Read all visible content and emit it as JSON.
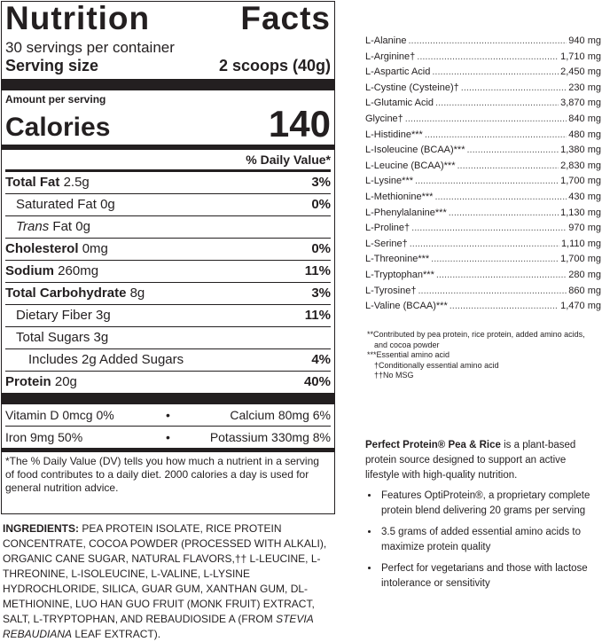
{
  "label": {
    "title_left": "Nutrition",
    "title_right": "Facts",
    "servings_per_container": "30 servings per container",
    "serving_size_label": "Serving size",
    "serving_size_value": "2 scoops (40g)",
    "amount_per_serving": "Amount per serving",
    "calories_label": "Calories",
    "calories_value": "140",
    "dv_header": "% Daily Value*",
    "rows": [
      {
        "name": "Total Fat",
        "amount": "2.5g",
        "dv": "3%"
      },
      {
        "name": "Saturated Fat",
        "amount": "0g",
        "dv": "0%"
      },
      {
        "name": "Trans",
        "name_rest": "Fat 0g",
        "dv": ""
      },
      {
        "name": "Cholesterol",
        "amount": "0mg",
        "dv": "0%"
      },
      {
        "name": "Sodium",
        "amount": "260mg",
        "dv": "11%"
      },
      {
        "name": "Total Carbohydrate",
        "amount": "8g",
        "dv": "3%"
      },
      {
        "name": "Dietary Fiber 3g",
        "amount": "",
        "dv": "11%"
      },
      {
        "name": "Total Sugars 3g",
        "amount": "",
        "dv": ""
      },
      {
        "name": "Includes 2g Added Sugars",
        "amount": "",
        "dv": "4%"
      },
      {
        "name": "Protein",
        "amount": "20g",
        "dv": "40%"
      }
    ],
    "vitamins": [
      {
        "left": "Vitamin D 0mcg 0%",
        "right": "Calcium 80mg 6%"
      },
      {
        "left": "Iron 9mg 50%",
        "right": "Potassium 330mg 8%"
      }
    ],
    "footnote": "*The % Daily Value (DV) tells you how much a nutrient in a serving of food contributes to a daily diet. 2000 calories a day is used for general nutrition advice."
  },
  "ingredients": {
    "label": "INGREDIENTS:",
    "text_1": " PEA PROTEIN ISOLATE, RICE PROTEIN CONCENTRATE, COCOA POWDER (PROCESSED WITH ALKALI), ORGANIC CANE SUGAR, NATURAL FLAVORS,†† L-LEUCINE, L-THREONINE, L-ISOLEUCINE, L-VALINE, L-LYSINE HYDROCHLORIDE, SILICA, GUAR GUM, XANTHAN GUM, DL-METHIONINE, LUO HAN GUO FRUIT (MONK FRUIT) EXTRACT, SALT, L-TRYPTOPHAN, AND REBAUDIOSIDE A (FROM ",
    "text_italic": "STEVIA REBAUDIANA",
    "text_2": " LEAF EXTRACT)."
  },
  "amino_acids": [
    {
      "name": "L-Alanine",
      "value": "940 mg"
    },
    {
      "name": "L-Arginine†",
      "value": "1,710 mg"
    },
    {
      "name": "L-Aspartic Acid",
      "value": "2,450 mg"
    },
    {
      "name": "L-Cystine (Cysteine)†",
      "value": "230 mg"
    },
    {
      "name": "L-Glutamic Acid",
      "value": "3,870 mg"
    },
    {
      "name": "Glycine†",
      "value": "840 mg"
    },
    {
      "name": "L-Histidine***",
      "value": "480 mg"
    },
    {
      "name": "L-Isoleucine (BCAA)***",
      "value": "1,380 mg"
    },
    {
      "name": "L-Leucine (BCAA)***",
      "value": "2,830 mg"
    },
    {
      "name": "L-Lysine***",
      "value": "1,700 mg"
    },
    {
      "name": "L-Methionine***",
      "value": "430 mg"
    },
    {
      "name": "L-Phenylalanine***",
      "value": "1,130 mg"
    },
    {
      "name": "L-Proline†",
      "value": "970 mg"
    },
    {
      "name": "L-Serine†",
      "value": "1,110 mg"
    },
    {
      "name": "L-Threonine***",
      "value": "1,700 mg"
    },
    {
      "name": "L-Tryptophan***",
      "value": "280 mg"
    },
    {
      "name": "L-Tyrosine†",
      "value": "860 mg"
    },
    {
      "name": "L-Valine (BCAA)***",
      "value": "1,470 mg"
    }
  ],
  "amino_notes": {
    "contributed_1": "**Contributed by pea protein, rice protein, added amino acids,",
    "contributed_2": "and cocoa powder",
    "essential": "***Essential amino acid",
    "conditional": "†Conditionally essential amino acid",
    "no_msg": "††No MSG"
  },
  "description": {
    "brand": "Perfect Protein® Pea & Rice",
    "intro_rest": " is a plant-based protein source designed to support an active lifestyle with high-quality nutrition.",
    "bullets": [
      "Features OptiProtein®, a proprietary complete protein blend delivering 20 grams per serving",
      "3.5 grams of added essential amino acids to maximize protein quality",
      "Perfect for vegetarians and those with lactose intolerance or sensitivity"
    ]
  }
}
